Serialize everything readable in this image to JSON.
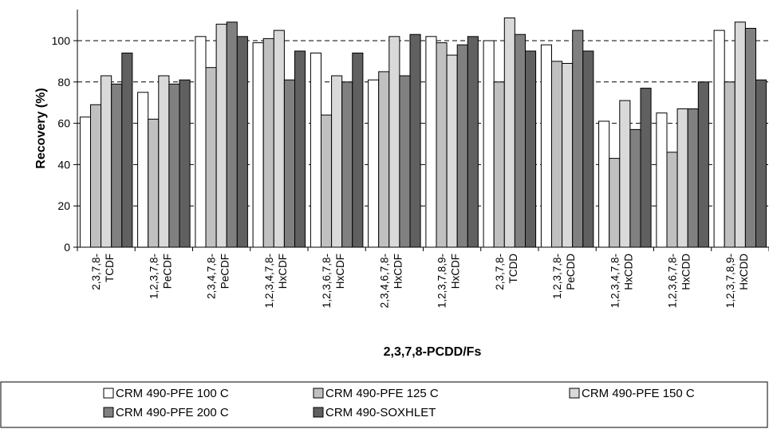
{
  "chart_data": {
    "type": "bar",
    "xlabel": "2,3,7,8-PCDD/Fs",
    "ylabel": "Recovery (%)",
    "ylim": [
      0,
      120
    ],
    "yticks": [
      0,
      20,
      40,
      60,
      80,
      100
    ],
    "grid": "horizontal dashed lines at 100 and at 120 below top",
    "legend_position": "bottom",
    "categories": [
      [
        "2,3,7,8-",
        "TCDF"
      ],
      [
        "1,2,3,7,8-",
        "PeCDF"
      ],
      [
        "2,3,4,7,8-",
        "PeCDF"
      ],
      [
        "1,2,3,4,7,8-",
        "HxCDF"
      ],
      [
        "1,2,3,6,7,8-",
        "HxCDF"
      ],
      [
        "2,3,4,6,7,8-",
        "HxCDF"
      ],
      [
        "1,2,3,7,8,9-",
        "HxCDF"
      ],
      [
        "2,3,7,8-",
        "TCDD"
      ],
      [
        "1,2,3,7,8-",
        "PeCDD"
      ],
      [
        "1,2,3,4,7,8-",
        "HxCDD"
      ],
      [
        "1,2,3,6,7,8-",
        "HxCDD"
      ],
      [
        "1,2,3,7,8,9-",
        "HxCDD"
      ]
    ],
    "series": [
      {
        "name": "CRM 490-PFE 100 C",
        "color": "#ffffff",
        "values": [
          63,
          75,
          102,
          99,
          94,
          81,
          102,
          100,
          98,
          61,
          65,
          105
        ]
      },
      {
        "name": "CRM 490-PFE 125 C",
        "color": "#c0c0c0",
        "values": [
          69,
          62,
          87,
          101,
          64,
          85,
          99,
          80,
          90,
          43,
          46,
          80
        ]
      },
      {
        "name": "CRM 490-PFE 150 C",
        "color": "#d9d9d9",
        "values": [
          83,
          83,
          108,
          105,
          83,
          102,
          93,
          111,
          89,
          71,
          67,
          109
        ]
      },
      {
        "name": "CRM 490-PFE 200 C",
        "color": "#808080",
        "values": [
          79,
          79,
          109,
          81,
          80,
          83,
          98,
          103,
          105,
          57,
          67,
          106
        ]
      },
      {
        "name": "CRM 490-SOXHLET",
        "color": "#606060",
        "values": [
          94,
          81,
          102,
          95,
          94,
          103,
          102,
          95,
          95,
          77,
          80,
          81
        ]
      }
    ]
  }
}
